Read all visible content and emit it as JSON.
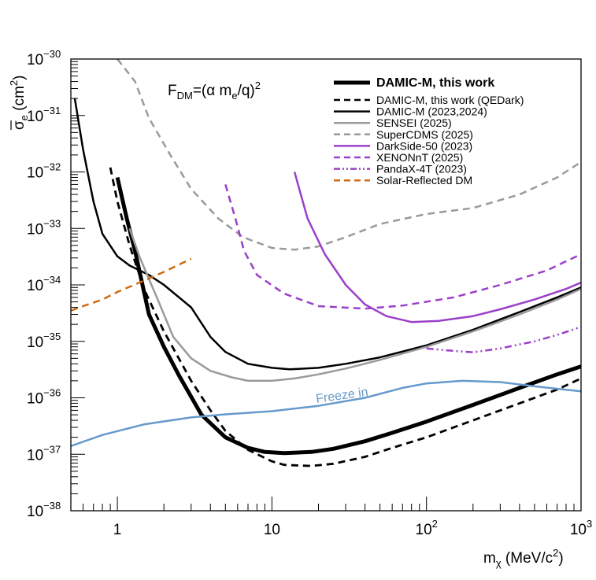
{
  "chart_data": {
    "type": "line",
    "x_scale": "log",
    "y_scale": "log",
    "xlim": [
      0.5,
      1000
    ],
    "ylim": [
      1e-38,
      1e-30
    ],
    "xlabel": "m_χ (MeV/c²)",
    "xlabel_parts": {
      "main": "m",
      "sub": "χ",
      "unit": " (MeV/c",
      "sup": "2",
      "close": ")"
    },
    "ylabel_parts": {
      "main": "σ",
      "sub": "e",
      "unit": " (cm",
      "sup": "2",
      "close": ")"
    },
    "x_tick_labels": [
      {
        "value": 1,
        "base": "1",
        "exp": ""
      },
      {
        "value": 10,
        "base": "10",
        "exp": ""
      },
      {
        "value": 100,
        "base": "10",
        "exp": "2"
      },
      {
        "value": 1000,
        "base": "10",
        "exp": "3"
      }
    ],
    "y_tick_labels": [
      {
        "value": 1e-30,
        "base": "10",
        "exp": "−30"
      },
      {
        "value": 1e-31,
        "base": "10",
        "exp": "−31"
      },
      {
        "value": 1e-32,
        "base": "10",
        "exp": "−32"
      },
      {
        "value": 1e-33,
        "base": "10",
        "exp": "−33"
      },
      {
        "value": 1e-34,
        "base": "10",
        "exp": "−34"
      },
      {
        "value": 1e-35,
        "base": "10",
        "exp": "−35"
      },
      {
        "value": 1e-36,
        "base": "10",
        "exp": "−36"
      },
      {
        "value": 1e-37,
        "base": "10",
        "exp": "−37"
      },
      {
        "value": 1e-38,
        "base": "10",
        "exp": "−38"
      }
    ],
    "annotation": {
      "prefix": "F",
      "sub1": "DM",
      "mid": "=(α m",
      "sub2": "e",
      "end": "/q)",
      "sup": "2"
    },
    "legend_position": "top-right",
    "series": [
      {
        "name": "DAMIC-M, this work",
        "color": "#000000",
        "style": "solid",
        "weight": "heavy",
        "bold_label": true,
        "points": [
          [
            1.0,
            8e-33
          ],
          [
            1.15,
            1.5e-33
          ],
          [
            1.3,
            4e-34
          ],
          [
            1.6,
            3e-35
          ],
          [
            2,
            8e-36
          ],
          [
            2.5,
            2.5e-36
          ],
          [
            3.5,
            5e-37
          ],
          [
            5,
            2e-37
          ],
          [
            7,
            1.3e-37
          ],
          [
            9,
            1.1e-37
          ],
          [
            12,
            1.05e-37
          ],
          [
            18,
            1.1e-37
          ],
          [
            25,
            1.25e-37
          ],
          [
            40,
            1.7e-37
          ],
          [
            60,
            2.4e-37
          ],
          [
            100,
            3.8e-37
          ],
          [
            200,
            7.5e-37
          ],
          [
            400,
            1.5e-36
          ],
          [
            700,
            2.6e-36
          ],
          [
            1000,
            3.6e-36
          ]
        ]
      },
      {
        "name": "DAMIC-M, this work (QEDark)",
        "color": "#000000",
        "style": "dash",
        "weight": "medium",
        "bold_label": false,
        "points": [
          [
            0.9,
            1.2e-32
          ],
          [
            1.0,
            3e-33
          ],
          [
            1.2,
            5e-34
          ],
          [
            1.5,
            8e-35
          ],
          [
            2,
            1.5e-35
          ],
          [
            3,
            2e-36
          ],
          [
            4,
            6e-37
          ],
          [
            5,
            2.6e-37
          ],
          [
            7,
            1.2e-37
          ],
          [
            10,
            7.5e-38
          ],
          [
            12,
            6.5e-38
          ],
          [
            18,
            6.2e-38
          ],
          [
            25,
            6.8e-38
          ],
          [
            40,
            9e-38
          ],
          [
            60,
            1.3e-37
          ],
          [
            100,
            2e-37
          ],
          [
            200,
            4e-37
          ],
          [
            400,
            8e-37
          ],
          [
            700,
            1.4e-36
          ],
          [
            1000,
            2.2e-36
          ]
        ]
      },
      {
        "name": "DAMIC-M (2023,2024)",
        "color": "#000000",
        "style": "solid",
        "weight": "normal",
        "bold_label": false,
        "points": [
          [
            0.53,
            2e-31
          ],
          [
            0.6,
            2.5e-32
          ],
          [
            0.7,
            3e-33
          ],
          [
            0.8,
            8e-34
          ],
          [
            1.0,
            3.2e-34
          ],
          [
            1.2,
            2.2e-34
          ],
          [
            1.6,
            1.5e-34
          ],
          [
            2,
            1e-34
          ],
          [
            3,
            4e-35
          ],
          [
            4,
            1.2e-35
          ],
          [
            5,
            6.5e-36
          ],
          [
            7,
            4e-36
          ],
          [
            10,
            3.4e-36
          ],
          [
            13,
            3.2e-36
          ],
          [
            20,
            3.4e-36
          ],
          [
            30,
            4e-36
          ],
          [
            50,
            5.2e-36
          ],
          [
            100,
            8.5e-36
          ],
          [
            200,
            1.6e-35
          ],
          [
            400,
            3.3e-35
          ],
          [
            700,
            6e-35
          ],
          [
            1000,
            9e-35
          ]
        ]
      },
      {
        "name": "SENSEI (2025)",
        "color": "#9a9a9a",
        "style": "solid",
        "weight": "normal",
        "bold_label": false,
        "points": [
          [
            1.2,
            1e-33
          ],
          [
            1.4,
            3e-34
          ],
          [
            1.8,
            6e-35
          ],
          [
            2.3,
            1.2e-35
          ],
          [
            3,
            5e-36
          ],
          [
            4,
            3e-36
          ],
          [
            5.5,
            2.3e-36
          ],
          [
            7,
            2e-36
          ],
          [
            10,
            2e-36
          ],
          [
            14,
            2.2e-36
          ],
          [
            20,
            2.6e-36
          ],
          [
            30,
            3.3e-36
          ],
          [
            50,
            4.7e-36
          ],
          [
            100,
            8e-36
          ],
          [
            200,
            1.5e-35
          ],
          [
            400,
            3e-35
          ],
          [
            700,
            5.5e-35
          ],
          [
            1000,
            8.5e-35
          ]
        ]
      },
      {
        "name": "SuperCDMS (2025)",
        "color": "#9a9a9a",
        "style": "dash",
        "weight": "normal",
        "bold_label": false,
        "points": [
          [
            1.0,
            1e-30
          ],
          [
            1.3,
            4e-31
          ],
          [
            1.6,
            9e-32
          ],
          [
            2.2,
            2e-32
          ],
          [
            3,
            5e-33
          ],
          [
            4.5,
            1.5e-33
          ],
          [
            6.5,
            7e-34
          ],
          [
            10,
            4.5e-34
          ],
          [
            14,
            4.2e-34
          ],
          [
            20,
            4.8e-34
          ],
          [
            30,
            7e-34
          ],
          [
            50,
            1.2e-33
          ],
          [
            100,
            1.8e-33
          ],
          [
            200,
            2.3e-33
          ],
          [
            400,
            4e-33
          ],
          [
            700,
            8e-33
          ],
          [
            1000,
            1.5e-32
          ]
        ]
      },
      {
        "name": "DarkSide-50 (2023)",
        "color": "#9b40c9",
        "style": "solid",
        "weight": "normal",
        "bold_label": false,
        "points": [
          [
            14,
            1e-32
          ],
          [
            17,
            1.5e-33
          ],
          [
            22,
            3.5e-34
          ],
          [
            30,
            1e-34
          ],
          [
            40,
            4.5e-35
          ],
          [
            55,
            2.8e-35
          ],
          [
            80,
            2.2e-35
          ],
          [
            120,
            2.3e-35
          ],
          [
            200,
            2.8e-35
          ],
          [
            300,
            3.7e-35
          ],
          [
            500,
            5.5e-35
          ],
          [
            800,
            8.5e-35
          ],
          [
            1000,
            1.1e-34
          ]
        ]
      },
      {
        "name": "XENONnT (2025)",
        "color": "#9b40c9",
        "style": "dash",
        "weight": "normal",
        "bold_label": false,
        "points": [
          [
            5,
            6e-33
          ],
          [
            5.8,
            1.5e-33
          ],
          [
            6.6,
            4e-34
          ],
          [
            8,
            1.5e-34
          ],
          [
            12,
            7e-35
          ],
          [
            20,
            4.2e-35
          ],
          [
            40,
            3.8e-35
          ],
          [
            70,
            4.3e-35
          ],
          [
            150,
            6e-35
          ],
          [
            300,
            1e-34
          ],
          [
            600,
            1.8e-34
          ],
          [
            1000,
            3.5e-34
          ]
        ]
      },
      {
        "name": "PandaX-4T (2023)",
        "color": "#9b40c9",
        "style": "dashdot",
        "weight": "normal",
        "bold_label": false,
        "points": [
          [
            100,
            7.5e-36
          ],
          [
            130,
            7e-36
          ],
          [
            200,
            6.4e-36
          ],
          [
            300,
            7.5e-36
          ],
          [
            500,
            1e-35
          ],
          [
            700,
            1.3e-35
          ],
          [
            1000,
            1.8e-35
          ]
        ]
      },
      {
        "name": "Solar-Reflected DM",
        "color": "#d06a10",
        "style": "dash",
        "weight": "normal",
        "bold_label": false,
        "points": [
          [
            0.5,
            3.5e-35
          ],
          [
            0.6,
            4.2e-35
          ],
          [
            0.8,
            5.5e-35
          ],
          [
            1,
            7.5e-35
          ],
          [
            1.5,
            1.2e-34
          ],
          [
            2,
            1.7e-34
          ],
          [
            3,
            2.9e-34
          ]
        ]
      },
      {
        "name": "Freeze in",
        "color": "#6699cc",
        "style": "solid",
        "weight": "normal",
        "bold_label": false,
        "in_legend": false,
        "points": [
          [
            0.5,
            1.4e-37
          ],
          [
            0.8,
            2.2e-37
          ],
          [
            1.5,
            3.4e-37
          ],
          [
            3,
            4.5e-37
          ],
          [
            5,
            5.1e-37
          ],
          [
            10,
            5.8e-37
          ],
          [
            20,
            7.2e-37
          ],
          [
            40,
            1e-36
          ],
          [
            70,
            1.5e-36
          ],
          [
            100,
            1.8e-36
          ],
          [
            170,
            2e-36
          ],
          [
            300,
            1.9e-36
          ],
          [
            500,
            1.6e-36
          ],
          [
            1000,
            1.3e-36
          ]
        ]
      }
    ],
    "freeze_in_label": "Freeze in"
  }
}
